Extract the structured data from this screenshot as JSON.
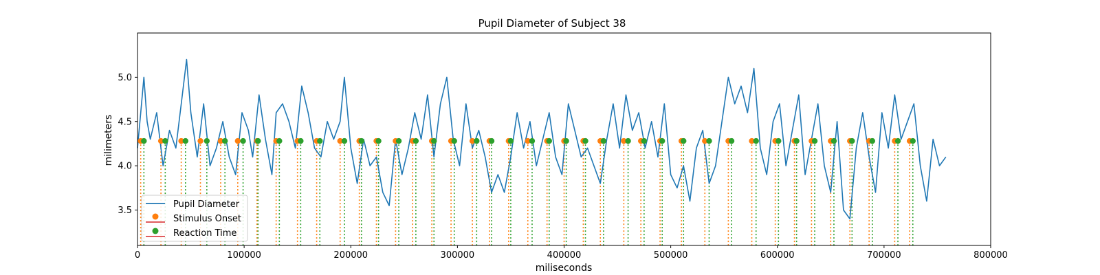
{
  "chart_data": {
    "type": "line",
    "title": "Pupil Diameter of Subject 38",
    "xlabel": "miliseconds",
    "ylabel": "milimeters",
    "xlim": [
      0,
      800000
    ],
    "ylim": [
      3.1,
      5.5
    ],
    "xticks": [
      0,
      100000,
      200000,
      300000,
      400000,
      500000,
      600000,
      700000,
      800000
    ],
    "xtick_labels": [
      "0",
      "100000",
      "200000",
      "300000",
      "400000",
      "500000",
      "600000",
      "700000",
      "800000"
    ],
    "yticks": [
      3.5,
      4.0,
      4.5,
      5.0
    ],
    "ytick_labels": [
      "3.5",
      "4.0",
      "4.5",
      "5.0"
    ],
    "grid": false,
    "legend_position": "lower-left",
    "legend": [
      {
        "label": "Pupil Diameter",
        "kind": "line",
        "color": "#1f77b4"
      },
      {
        "label": "Stimulus Onset",
        "kind": "stem",
        "color": "#ff7f0e",
        "base_color": "#d62728"
      },
      {
        "label": "Reaction Time",
        "kind": "stem",
        "color": "#2ca02c",
        "base_color": "#d62728"
      }
    ],
    "series": [
      {
        "name": "Pupil Diameter",
        "color": "#1f77b4",
        "x": [
          0,
          3000,
          6000,
          9000,
          12000,
          18000,
          24000,
          30000,
          36000,
          42000,
          46000,
          50000,
          56000,
          62000,
          68000,
          74000,
          80000,
          86000,
          92000,
          98000,
          104000,
          108000,
          114000,
          120000,
          126000,
          130000,
          136000,
          142000,
          148000,
          154000,
          160000,
          166000,
          172000,
          178000,
          184000,
          190000,
          194000,
          200000,
          206000,
          212000,
          218000,
          224000,
          230000,
          236000,
          242000,
          248000,
          254000,
          260000,
          266000,
          272000,
          278000,
          284000,
          290000,
          296000,
          302000,
          308000,
          314000,
          320000,
          326000,
          332000,
          338000,
          344000,
          350000,
          356000,
          362000,
          368000,
          374000,
          380000,
          386000,
          392000,
          398000,
          404000,
          410000,
          416000,
          422000,
          428000,
          434000,
          440000,
          446000,
          452000,
          458000,
          464000,
          470000,
          476000,
          482000,
          488000,
          494000,
          500000,
          506000,
          512000,
          518000,
          524000,
          530000,
          536000,
          542000,
          548000,
          554000,
          560000,
          566000,
          572000,
          578000,
          584000,
          590000,
          596000,
          602000,
          608000,
          614000,
          620000,
          626000,
          632000,
          638000,
          644000,
          650000,
          656000,
          662000,
          668000,
          674000,
          680000,
          686000,
          692000,
          698000,
          704000,
          710000,
          716000,
          722000,
          728000,
          734000,
          740000,
          746000,
          752000,
          758000
        ],
        "y": [
          4.2,
          4.6,
          5.0,
          4.5,
          4.3,
          4.6,
          4.0,
          4.4,
          4.2,
          4.8,
          5.2,
          4.6,
          4.1,
          4.7,
          4.0,
          4.2,
          4.5,
          4.1,
          3.9,
          4.6,
          4.4,
          4.1,
          4.8,
          4.3,
          3.9,
          4.6,
          4.7,
          4.5,
          4.2,
          4.9,
          4.6,
          4.2,
          4.1,
          4.5,
          4.3,
          4.5,
          5.0,
          4.2,
          3.8,
          4.3,
          4.0,
          4.1,
          3.7,
          3.55,
          4.3,
          3.9,
          4.2,
          4.6,
          4.3,
          4.8,
          4.1,
          4.7,
          5.0,
          4.3,
          4.0,
          4.7,
          4.2,
          4.4,
          4.1,
          3.7,
          3.9,
          3.7,
          4.1,
          4.6,
          4.2,
          4.5,
          4.0,
          4.3,
          4.6,
          4.1,
          3.9,
          4.7,
          4.4,
          4.1,
          4.2,
          4.0,
          3.8,
          4.3,
          4.7,
          4.2,
          4.8,
          4.4,
          4.6,
          4.2,
          4.5,
          4.1,
          4.7,
          3.9,
          3.75,
          4.0,
          3.6,
          4.2,
          4.4,
          3.8,
          4.0,
          4.5,
          5.0,
          4.7,
          4.9,
          4.6,
          5.1,
          4.2,
          3.9,
          4.5,
          4.7,
          4.0,
          4.4,
          4.8,
          3.9,
          4.3,
          4.7,
          4.0,
          3.7,
          4.5,
          3.5,
          3.4,
          4.2,
          4.6,
          4.1,
          3.7,
          4.6,
          4.2,
          4.8,
          4.3,
          4.5,
          4.7,
          4.0,
          3.6,
          4.3,
          4.0,
          4.1
        ]
      }
    ],
    "stimulus_onset_x": [
      3000,
      22000,
      41000,
      59000,
      78000,
      94000,
      112000,
      130000,
      150000,
      168000,
      190000,
      208000,
      224000,
      242000,
      258000,
      276000,
      294000,
      314000,
      330000,
      348000,
      366000,
      384000,
      400000,
      418000,
      434000,
      456000,
      472000,
      490000,
      510000,
      532000,
      554000,
      576000,
      598000,
      616000,
      632000,
      650000,
      668000,
      686000,
      710000,
      724000
    ],
    "reaction_time_x": [
      6000,
      26000,
      45000,
      65000,
      82000,
      99000,
      113000,
      133000,
      153000,
      171000,
      194000,
      210000,
      226000,
      245000,
      261000,
      278000,
      297000,
      318000,
      332000,
      350000,
      370000,
      386000,
      402000,
      420000,
      437000,
      460000,
      475000,
      492000,
      512000,
      536000,
      557000,
      580000,
      601000,
      618000,
      635000,
      653000,
      670000,
      689000,
      713000,
      727000
    ],
    "stem_y": 4.28
  }
}
